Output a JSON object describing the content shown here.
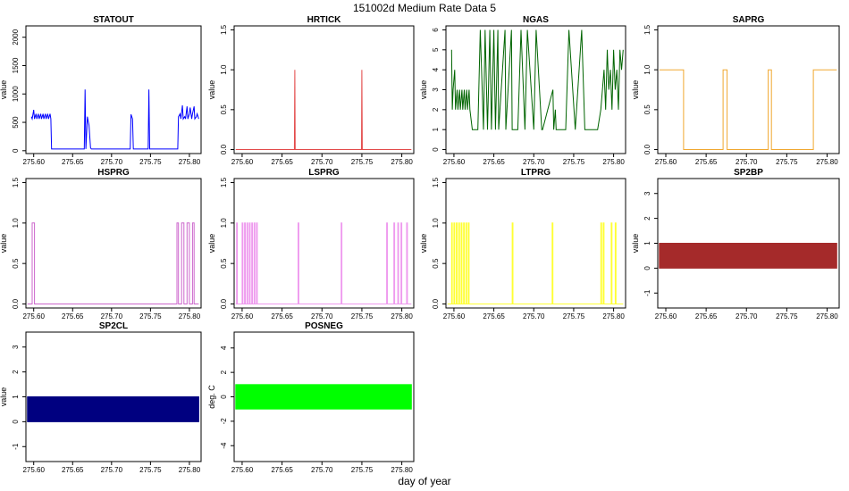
{
  "page": {
    "title": "151002d   Medium Rate Data 5",
    "xlabel": "day of year"
  },
  "chart_data": [
    {
      "type": "line",
      "title": "STATOUT",
      "ylabel": "value",
      "color": "#0000ff",
      "xlim": [
        275.59,
        275.815
      ],
      "ylim": [
        -50,
        2200
      ],
      "xticks": [
        "275.60",
        "275.65",
        "275.70",
        "275.75",
        "275.80"
      ],
      "yticks": [
        "0",
        "500",
        "1000",
        "1500",
        "2000"
      ],
      "x": [
        275.597,
        275.598,
        275.6,
        275.601,
        275.603,
        275.604,
        275.606,
        275.607,
        275.609,
        275.61,
        275.612,
        275.613,
        275.615,
        275.616,
        275.618,
        275.619,
        275.621,
        275.622,
        275.623,
        275.665,
        275.666,
        275.667,
        275.669,
        275.67,
        275.671,
        275.673,
        275.674,
        275.675,
        275.724,
        275.725,
        275.727,
        275.728,
        275.729,
        275.747,
        275.748,
        275.749,
        275.785,
        275.786,
        275.788,
        275.789,
        275.791,
        275.792,
        275.794,
        275.795,
        275.797,
        275.798,
        275.8,
        275.801,
        275.803,
        275.804,
        275.806,
        275.807,
        275.809,
        275.81,
        275.812
      ],
      "y": [
        600,
        560,
        720,
        560,
        650,
        560,
        650,
        560,
        650,
        560,
        650,
        560,
        650,
        560,
        650,
        560,
        650,
        560,
        30,
        30,
        1080,
        30,
        600,
        520,
        450,
        50,
        30,
        30,
        30,
        640,
        560,
        30,
        30,
        30,
        1080,
        30,
        30,
        600,
        650,
        560,
        800,
        560,
        600,
        560,
        780,
        560,
        650,
        760,
        560,
        650,
        780,
        560,
        600,
        650,
        560
      ]
    },
    {
      "type": "line",
      "title": "HRTICK",
      "ylabel": "value",
      "color": "#e34a4a",
      "xlim": [
        275.59,
        275.815
      ],
      "ylim": [
        -0.05,
        1.55
      ],
      "xticks": [
        "275.60",
        "275.65",
        "275.70",
        "275.75",
        "275.80"
      ],
      "yticks": [
        "0.0",
        "0.5",
        "1.0",
        "1.5"
      ],
      "x": [
        275.592,
        275.6655,
        275.666,
        275.6665,
        275.7495,
        275.75,
        275.7505,
        275.812
      ],
      "y": [
        0,
        0,
        1,
        0,
        0,
        1,
        0,
        0
      ]
    },
    {
      "type": "line",
      "title": "NGAS",
      "ylabel": "value",
      "color": "#006400",
      "xlim": [
        275.59,
        275.815
      ],
      "ylim": [
        -0.2,
        6.2
      ],
      "xticks": [
        "275.60",
        "275.65",
        "275.70",
        "275.75",
        "275.80"
      ],
      "yticks": [
        "0",
        "1",
        "2",
        "3",
        "4",
        "5",
        "6"
      ],
      "x": [
        275.597,
        275.598,
        275.599,
        275.601,
        275.602,
        275.604,
        275.605,
        275.607,
        275.608,
        275.61,
        275.611,
        275.613,
        275.614,
        275.616,
        275.617,
        275.619,
        275.62,
        275.623,
        275.63,
        275.633,
        275.637,
        275.639,
        275.642,
        275.645,
        275.647,
        275.65,
        275.652,
        275.655,
        275.656,
        275.664,
        275.665,
        275.672,
        275.673,
        275.68,
        275.684,
        275.689,
        275.692,
        275.7,
        275.703,
        275.71,
        275.711,
        275.724,
        275.725,
        275.727,
        275.728,
        275.74,
        275.744,
        275.752,
        275.76,
        275.764,
        275.78,
        275.784,
        275.786,
        275.788,
        275.79,
        275.792,
        275.794,
        275.796,
        275.798,
        275.8,
        275.802,
        275.804,
        275.806,
        275.808,
        275.81,
        275.812
      ],
      "y": [
        5,
        2,
        3,
        4,
        2,
        3,
        2,
        3,
        2,
        3,
        2,
        3,
        2,
        3,
        2,
        3,
        2,
        1,
        1,
        6,
        1,
        6,
        1,
        6,
        1,
        6,
        1,
        6,
        1,
        6,
        1,
        6,
        1,
        1,
        6,
        1,
        6,
        1,
        6,
        1,
        1,
        3,
        1,
        2,
        1,
        1,
        6,
        1,
        6,
        1,
        1,
        2,
        3,
        4,
        2,
        5,
        3,
        4,
        2,
        5,
        3,
        4,
        2,
        5,
        4,
        5
      ]
    },
    {
      "type": "line",
      "title": "SAPRG",
      "ylabel": "value",
      "color": "#f0a830",
      "xlim": [
        275.59,
        275.815
      ],
      "ylim": [
        -0.05,
        1.55
      ],
      "xticks": [
        "275.60",
        "275.65",
        "275.70",
        "275.75",
        "275.80"
      ],
      "yticks": [
        "0.0",
        "0.5",
        "1.0",
        "1.5"
      ],
      "x": [
        275.592,
        275.622,
        275.622,
        275.671,
        275.671,
        275.676,
        275.676,
        275.727,
        275.727,
        275.731,
        275.731,
        275.783,
        275.783,
        275.812
      ],
      "y": [
        1,
        1,
        0,
        0,
        1,
        1,
        0,
        0,
        1,
        1,
        0,
        0,
        1,
        1
      ]
    },
    {
      "type": "line",
      "title": "HSPRG",
      "ylabel": "value",
      "color": "#cc66cc",
      "xlim": [
        275.59,
        275.815
      ],
      "ylim": [
        -0.05,
        1.55
      ],
      "xticks": [
        "275.60",
        "275.65",
        "275.70",
        "275.75",
        "275.80"
      ],
      "yticks": [
        "0.0",
        "0.5",
        "1.0",
        "1.5"
      ],
      "x": [
        275.592,
        275.598,
        275.598,
        275.601,
        275.601,
        275.784,
        275.784,
        275.786,
        275.786,
        275.79,
        275.79,
        275.793,
        275.793,
        275.797,
        275.797,
        275.8,
        275.8,
        275.804,
        275.804,
        275.806,
        275.806,
        275.812
      ],
      "y": [
        0,
        0,
        1,
        1,
        0,
        0,
        1,
        1,
        0,
        0,
        1,
        1,
        0,
        0,
        1,
        1,
        0,
        0,
        1,
        1,
        0,
        0
      ]
    },
    {
      "type": "line",
      "title": "LSPRG",
      "ylabel": "value",
      "color": "#ee99ee",
      "xlim": [
        275.59,
        275.815
      ],
      "ylim": [
        -0.05,
        1.55
      ],
      "xticks": [
        "275.60",
        "275.65",
        "275.70",
        "275.75",
        "275.80"
      ],
      "yticks": [
        "0.0",
        "0.5",
        "1.0",
        "1.5"
      ],
      "x": [
        275.592,
        275.593,
        275.593,
        275.594,
        275.594,
        275.6,
        275.6,
        275.601,
        275.601,
        275.603,
        275.603,
        275.604,
        275.604,
        275.606,
        275.606,
        275.607,
        275.607,
        275.609,
        275.609,
        275.61,
        275.61,
        275.612,
        275.612,
        275.613,
        275.613,
        275.615,
        275.615,
        275.616,
        275.616,
        275.618,
        275.618,
        275.619,
        275.619,
        275.67,
        275.67,
        275.671,
        275.671,
        275.724,
        275.724,
        275.725,
        275.725,
        275.781,
        275.781,
        275.782,
        275.782,
        275.79,
        275.79,
        275.791,
        275.791,
        275.795,
        275.795,
        275.796,
        275.796,
        275.799,
        275.799,
        275.8,
        275.8,
        275.806,
        275.806,
        275.807,
        275.807,
        275.812
      ],
      "y": [
        0,
        0,
        1,
        1,
        0,
        0,
        1,
        1,
        0,
        0,
        1,
        1,
        0,
        0,
        1,
        1,
        0,
        0,
        1,
        1,
        0,
        0,
        1,
        1,
        0,
        0,
        1,
        1,
        0,
        0,
        1,
        1,
        0,
        0,
        1,
        1,
        0,
        0,
        1,
        1,
        0,
        0,
        1,
        1,
        0,
        0,
        1,
        1,
        0,
        0,
        1,
        1,
        0,
        0,
        1,
        1,
        0,
        0,
        1,
        1,
        0,
        0
      ]
    },
    {
      "type": "line",
      "title": "LTPRG",
      "ylabel": "value",
      "color": "#ffff33",
      "xlim": [
        275.59,
        275.815
      ],
      "ylim": [
        -0.05,
        1.55
      ],
      "xticks": [
        "275.60",
        "275.65",
        "275.70",
        "275.75",
        "275.80"
      ],
      "yticks": [
        "0.0",
        "0.5",
        "1.0",
        "1.5"
      ],
      "x": [
        275.592,
        275.597,
        275.597,
        275.598,
        275.598,
        275.6,
        275.6,
        275.601,
        275.601,
        275.603,
        275.603,
        275.604,
        275.604,
        275.606,
        275.606,
        275.607,
        275.607,
        275.609,
        275.609,
        275.61,
        275.61,
        275.612,
        275.612,
        275.613,
        275.613,
        275.615,
        275.615,
        275.616,
        275.616,
        275.618,
        275.618,
        275.619,
        275.619,
        275.673,
        275.673,
        275.674,
        275.674,
        275.723,
        275.723,
        275.724,
        275.724,
        275.784,
        275.784,
        275.785,
        275.785,
        275.787,
        275.787,
        275.788,
        275.788,
        275.797,
        275.797,
        275.798,
        275.798,
        275.802,
        275.802,
        275.803,
        275.803,
        275.812
      ],
      "y": [
        0,
        0,
        1,
        1,
        0,
        0,
        1,
        1,
        0,
        0,
        1,
        1,
        0,
        0,
        1,
        1,
        0,
        0,
        1,
        1,
        0,
        0,
        1,
        1,
        0,
        0,
        1,
        1,
        0,
        0,
        1,
        1,
        0,
        0,
        1,
        1,
        0,
        0,
        1,
        1,
        0,
        0,
        1,
        1,
        0,
        0,
        1,
        1,
        0,
        0,
        1,
        1,
        0,
        0,
        1,
        1,
        0,
        0
      ]
    },
    {
      "type": "area",
      "title": "SP2BP",
      "ylabel": "value",
      "color": "#a52a2a",
      "xlim": [
        275.59,
        275.815
      ],
      "ylim": [
        -1.6,
        3.6
      ],
      "xticks": [
        "275.60",
        "275.65",
        "275.70",
        "275.75",
        "275.80"
      ],
      "yticks": [
        "-1",
        "0",
        "1",
        "2",
        "3"
      ],
      "x": [
        275.592,
        275.812
      ],
      "y": [
        0,
        0
      ],
      "y_top": 1
    },
    {
      "type": "area",
      "title": "SP2CL",
      "ylabel": "value",
      "color": "#000080",
      "xlim": [
        275.59,
        275.815
      ],
      "ylim": [
        -1.6,
        3.6
      ],
      "xticks": [
        "275.60",
        "275.65",
        "275.70",
        "275.75",
        "275.80"
      ],
      "yticks": [
        "-1",
        "0",
        "1",
        "2",
        "3"
      ],
      "x": [
        275.592,
        275.812
      ],
      "y": [
        0,
        0
      ],
      "y_top": 1
    },
    {
      "type": "area",
      "title": "POSNEG",
      "ylabel": "deg. C",
      "color": "#00ff00",
      "xlim": [
        275.59,
        275.815
      ],
      "ylim": [
        -5.3,
        5.3
      ],
      "xticks": [
        "275.60",
        "275.65",
        "275.70",
        "275.75",
        "275.80"
      ],
      "yticks": [
        "-4",
        "-2",
        "0",
        "2",
        "4"
      ],
      "x": [
        275.592,
        275.812
      ],
      "y": [
        -1,
        -1
      ],
      "y_top": 1
    }
  ]
}
